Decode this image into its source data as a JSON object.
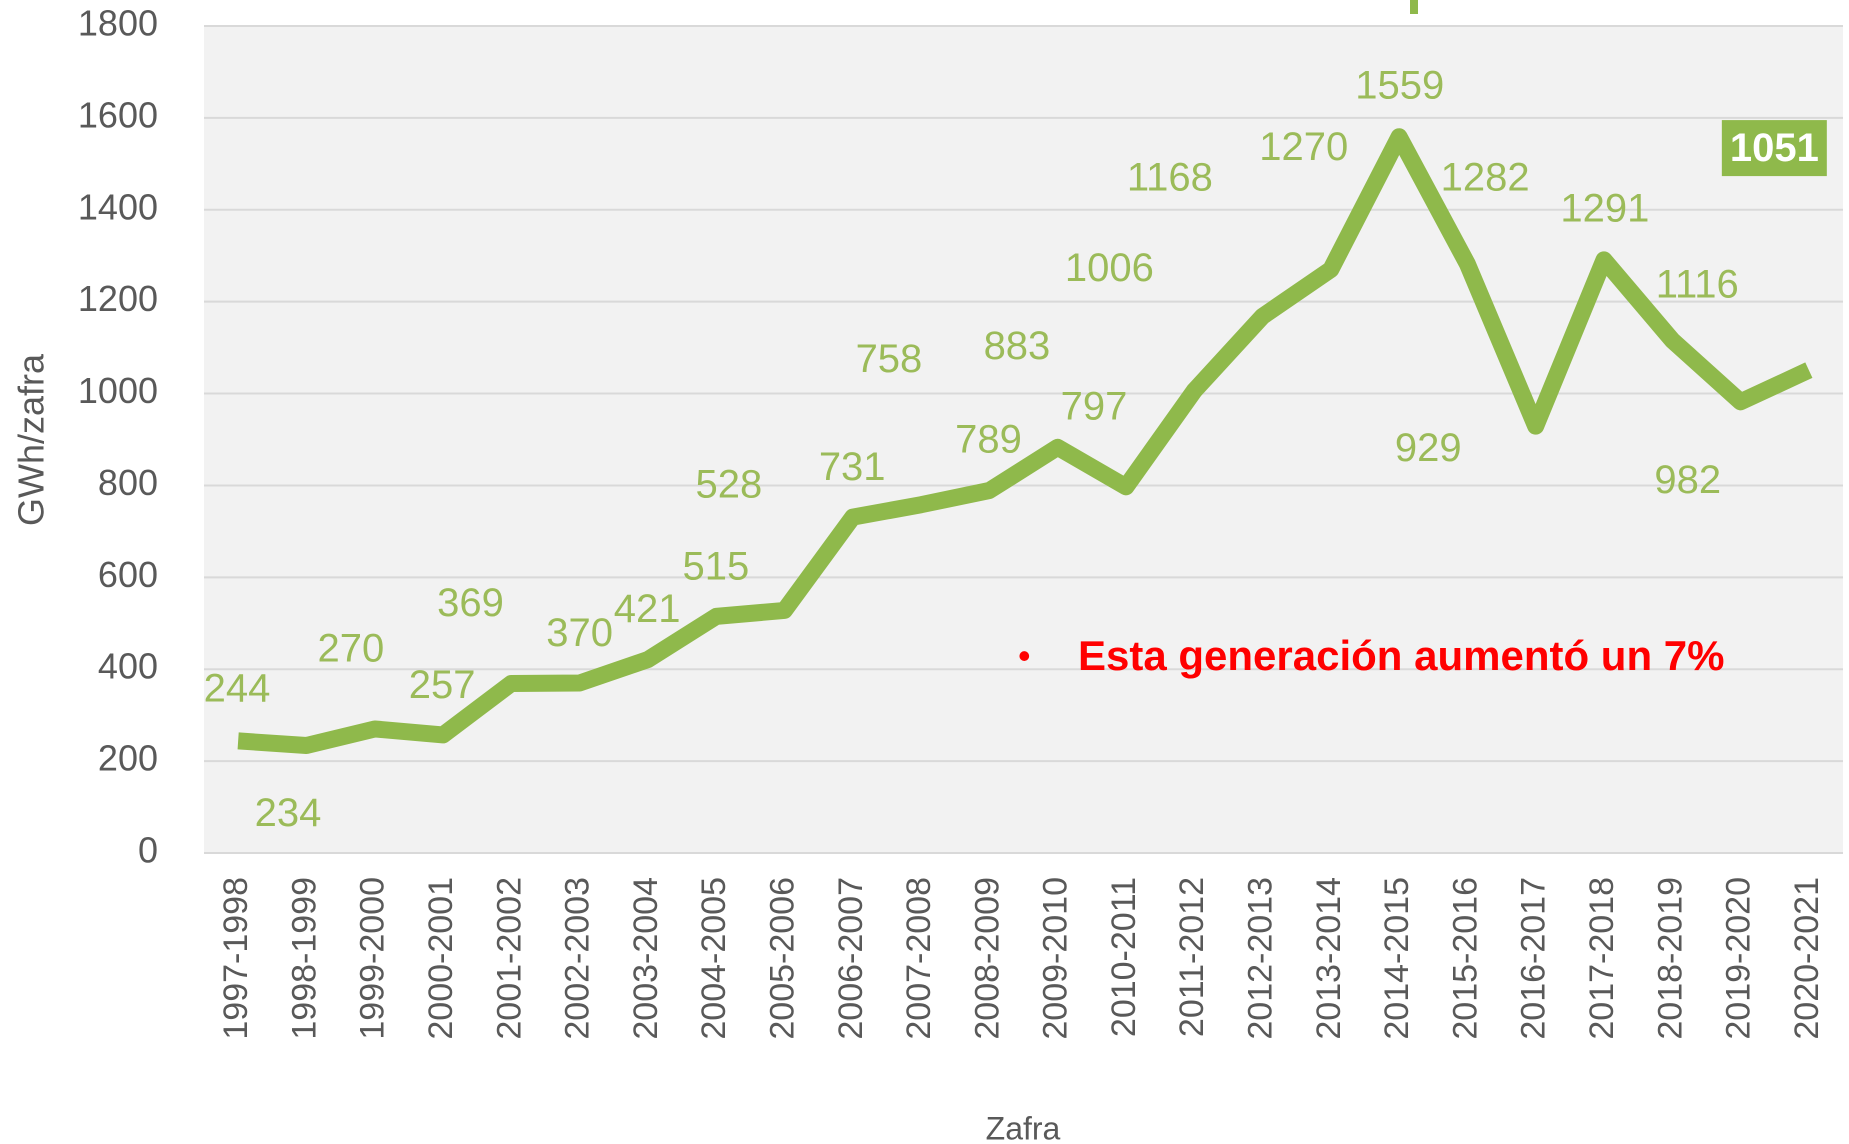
{
  "chart_data": {
    "type": "line",
    "y_label": "GWh/zafra",
    "x_label": "Zafra",
    "annotation": "Esta generación aumentó un 7%",
    "categories": [
      "1997-1998",
      "1998-1999",
      "1999-2000",
      "2000-2001",
      "2001-2002",
      "2002-2003",
      "2003-2004",
      "2004-2005",
      "2005-2006",
      "2006-2007",
      "2007-2008",
      "2008-2009",
      "2009-2010",
      "2010-2011",
      "2011-2012",
      "2012-2013",
      "2013-2014",
      "2014-2015",
      "2015-2016",
      "2016-2017",
      "2017-2018",
      "2018-2019",
      "2019-2020",
      "2020-2021"
    ],
    "values": [
      244,
      234,
      270,
      257,
      369,
      370,
      421,
      515,
      528,
      731,
      758,
      789,
      883,
      797,
      1006,
      1168,
      1270,
      1559,
      1282,
      929,
      1291,
      1116,
      982,
      1051
    ],
    "color": "#8fb94b",
    "ylim": [
      0,
      1800
    ],
    "yticks": [
      0,
      200,
      400,
      600,
      800,
      1000,
      1200,
      1400,
      1600,
      1800
    ],
    "grid": true
  }
}
